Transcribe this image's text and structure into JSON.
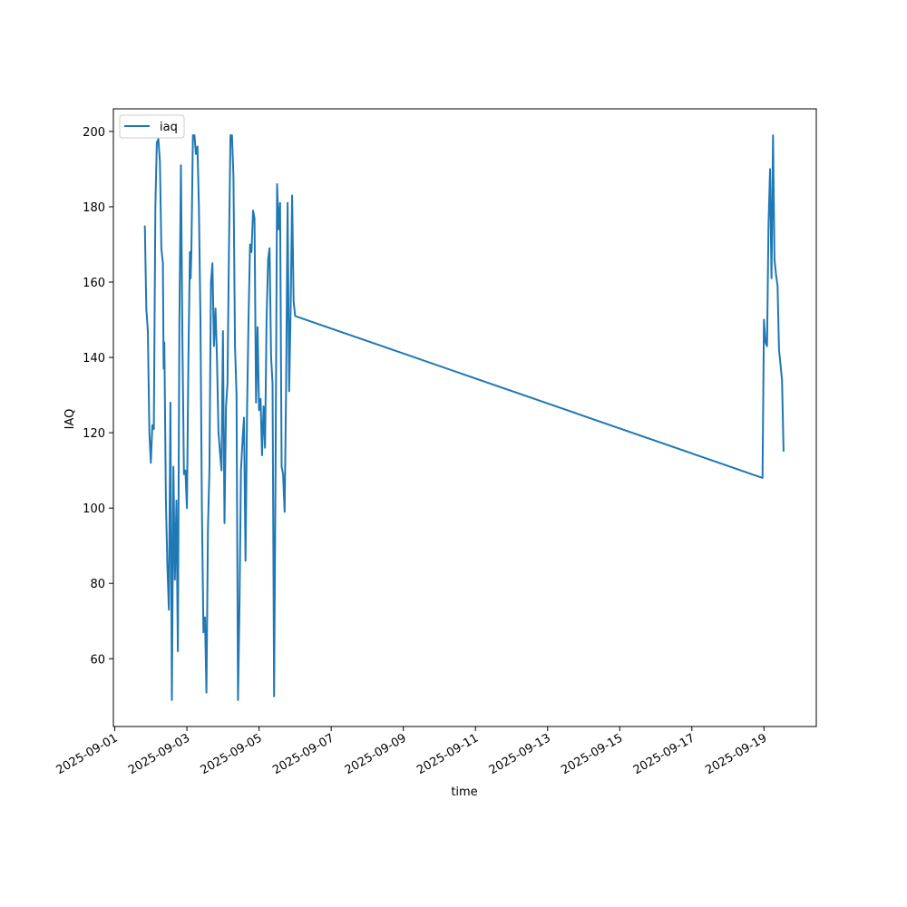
{
  "chart_data": {
    "type": "line",
    "title": "",
    "xlabel": "time",
    "ylabel": "IAQ",
    "xlim": [
      "2025-08-31T23:04",
      "2025-09-20T10:48"
    ],
    "ylim": [
      42,
      206
    ],
    "x_ticks": [
      "2025-09-01",
      "2025-09-03",
      "2025-09-05",
      "2025-09-07",
      "2025-09-09",
      "2025-09-11",
      "2025-09-13",
      "2025-09-15",
      "2025-09-17",
      "2025-09-19"
    ],
    "y_ticks": [
      60,
      80,
      100,
      120,
      140,
      160,
      180,
      200
    ],
    "grid": false,
    "legend_position": "top-left",
    "series": [
      {
        "name": "iaq",
        "color": "#1f77b4",
        "points": [
          [
            "2025-09-01T20:00",
            175
          ],
          [
            "2025-09-01T21:00",
            153
          ],
          [
            "2025-09-01T22:00",
            147
          ],
          [
            "2025-09-01T23:00",
            120
          ],
          [
            "2025-09-02T00:00",
            112
          ],
          [
            "2025-09-02T01:00",
            122
          ],
          [
            "2025-09-02T02:00",
            121
          ],
          [
            "2025-09-02T03:00",
            180
          ],
          [
            "2025-09-02T04:00",
            197
          ],
          [
            "2025-09-02T05:00",
            198
          ],
          [
            "2025-09-02T06:00",
            192
          ],
          [
            "2025-09-02T07:00",
            169
          ],
          [
            "2025-09-02T08:00",
            165
          ],
          [
            "2025-09-02T08:30",
            137
          ],
          [
            "2025-09-02T09:00",
            144
          ],
          [
            "2025-09-02T10:00",
            102
          ],
          [
            "2025-09-02T11:00",
            85
          ],
          [
            "2025-09-02T12:00",
            73
          ],
          [
            "2025-09-02T13:00",
            128
          ],
          [
            "2025-09-02T14:00",
            49
          ],
          [
            "2025-09-02T15:00",
            111
          ],
          [
            "2025-09-02T16:00",
            81
          ],
          [
            "2025-09-02T17:00",
            102
          ],
          [
            "2025-09-02T18:00",
            62
          ],
          [
            "2025-09-02T19:00",
            150
          ],
          [
            "2025-09-02T20:00",
            191
          ],
          [
            "2025-09-02T21:00",
            145
          ],
          [
            "2025-09-02T22:00",
            109
          ],
          [
            "2025-09-02T23:00",
            110
          ],
          [
            "2025-09-03T00:00",
            100
          ],
          [
            "2025-09-03T01:00",
            139
          ],
          [
            "2025-09-03T02:00",
            168
          ],
          [
            "2025-09-03T02:30",
            161
          ],
          [
            "2025-09-03T03:00",
            168
          ],
          [
            "2025-09-03T04:00",
            199
          ],
          [
            "2025-09-03T05:00",
            199
          ],
          [
            "2025-09-03T06:00",
            194
          ],
          [
            "2025-09-03T07:00",
            196
          ],
          [
            "2025-09-03T08:00",
            180
          ],
          [
            "2025-09-03T09:00",
            150
          ],
          [
            "2025-09-03T10:00",
            100
          ],
          [
            "2025-09-03T11:00",
            67
          ],
          [
            "2025-09-03T12:00",
            71
          ],
          [
            "2025-09-03T13:00",
            51
          ],
          [
            "2025-09-03T14:00",
            95
          ],
          [
            "2025-09-03T15:00",
            110
          ],
          [
            "2025-09-03T16:00",
            160
          ],
          [
            "2025-09-03T17:00",
            165
          ],
          [
            "2025-09-03T18:00",
            143
          ],
          [
            "2025-09-03T19:00",
            153
          ],
          [
            "2025-09-03T20:00",
            140
          ],
          [
            "2025-09-03T21:00",
            120
          ],
          [
            "2025-09-03T22:00",
            115
          ],
          [
            "2025-09-03T23:00",
            110
          ],
          [
            "2025-09-04T00:00",
            147
          ],
          [
            "2025-09-04T01:00",
            96
          ],
          [
            "2025-09-04T02:00",
            127
          ],
          [
            "2025-09-04T03:00",
            133
          ],
          [
            "2025-09-04T04:00",
            170
          ],
          [
            "2025-09-04T05:00",
            199
          ],
          [
            "2025-09-04T06:00",
            199
          ],
          [
            "2025-09-04T07:00",
            188
          ],
          [
            "2025-09-04T08:00",
            143
          ],
          [
            "2025-09-04T09:00",
            130
          ],
          [
            "2025-09-04T10:00",
            49
          ],
          [
            "2025-09-04T11:00",
            75
          ],
          [
            "2025-09-04T12:00",
            110
          ],
          [
            "2025-09-04T13:00",
            118
          ],
          [
            "2025-09-04T14:00",
            124
          ],
          [
            "2025-09-04T15:00",
            86
          ],
          [
            "2025-09-04T16:00",
            126
          ],
          [
            "2025-09-04T17:00",
            150
          ],
          [
            "2025-09-04T18:00",
            170
          ],
          [
            "2025-09-04T19:00",
            168
          ],
          [
            "2025-09-04T20:00",
            179
          ],
          [
            "2025-09-04T21:00",
            177
          ],
          [
            "2025-09-04T22:00",
            128
          ],
          [
            "2025-09-04T23:00",
            148
          ],
          [
            "2025-09-05T00:00",
            126
          ],
          [
            "2025-09-05T01:00",
            129
          ],
          [
            "2025-09-05T02:00",
            114
          ],
          [
            "2025-09-05T03:00",
            127
          ],
          [
            "2025-09-05T04:00",
            116
          ],
          [
            "2025-09-05T05:00",
            150
          ],
          [
            "2025-09-05T06:00",
            166
          ],
          [
            "2025-09-05T07:00",
            169
          ],
          [
            "2025-09-05T08:00",
            140
          ],
          [
            "2025-09-05T09:00",
            133
          ],
          [
            "2025-09-05T10:00",
            50
          ],
          [
            "2025-09-05T11:00",
            110
          ],
          [
            "2025-09-05T12:00",
            186
          ],
          [
            "2025-09-05T13:00",
            174
          ],
          [
            "2025-09-05T14:00",
            181
          ],
          [
            "2025-09-05T15:00",
            111
          ],
          [
            "2025-09-05T16:00",
            109
          ],
          [
            "2025-09-05T17:00",
            99
          ],
          [
            "2025-09-05T18:00",
            131
          ],
          [
            "2025-09-05T19:00",
            181
          ],
          [
            "2025-09-05T20:00",
            131
          ],
          [
            "2025-09-05T21:00",
            152
          ],
          [
            "2025-09-05T22:00",
            183
          ],
          [
            "2025-09-05T23:00",
            155
          ],
          [
            "2025-09-06T00:00",
            151
          ],
          [
            "2025-09-18T23:00",
            108
          ],
          [
            "2025-09-19T00:00",
            150
          ],
          [
            "2025-09-19T01:00",
            144
          ],
          [
            "2025-09-19T02:00",
            143
          ],
          [
            "2025-09-19T03:00",
            175
          ],
          [
            "2025-09-19T04:00",
            190
          ],
          [
            "2025-09-19T05:00",
            161
          ],
          [
            "2025-09-19T06:00",
            199
          ],
          [
            "2025-09-19T07:00",
            166
          ],
          [
            "2025-09-19T08:00",
            162
          ],
          [
            "2025-09-19T09:00",
            159
          ],
          [
            "2025-09-19T10:00",
            142
          ],
          [
            "2025-09-19T11:00",
            138
          ],
          [
            "2025-09-19T12:00",
            134
          ],
          [
            "2025-09-19T13:00",
            115
          ]
        ]
      }
    ]
  }
}
